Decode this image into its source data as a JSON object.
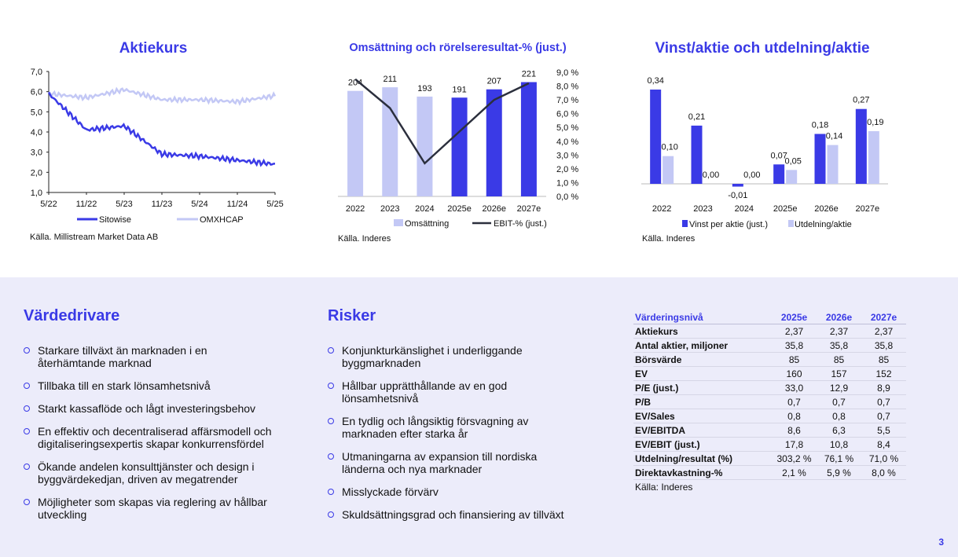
{
  "charts": {
    "stock": {
      "title": "Aktiekurs",
      "source": "Källa. Millistream Market Data AB",
      "y_ticks": [
        "7,0",
        "6,0",
        "5,0",
        "4,0",
        "3,0",
        "2,0",
        "1,0"
      ],
      "x_ticks": [
        "5/22",
        "11/22",
        "5/23",
        "11/23",
        "5/24",
        "11/24",
        "5/25"
      ],
      "legend": [
        "Sitowise",
        "OMXHCAP"
      ],
      "colors": {
        "sitowise": "#3a3ae6",
        "omxhcap": "#c3c8f5"
      }
    },
    "revenue": {
      "title": "Omsättning och rörelseresultat-% (just.)",
      "source": "Källa. Inderes",
      "y2_ticks": [
        "9,0 %",
        "8,0 %",
        "7,0 %",
        "6,0 %",
        "5,0 %",
        "4,0 %",
        "3,0 %",
        "2,0 %",
        "1,0 %",
        "0,0 %"
      ],
      "legend": [
        "Omsättning",
        "EBIT-% (just.)"
      ],
      "colors": {
        "bar_hist": "#c3c8f5",
        "bar_fc": "#3a3ae6",
        "line": "#2b2f3d"
      }
    },
    "eps": {
      "title": "Vinst/aktie och utdelning/aktie",
      "source": "Källa. Inderes",
      "legend": [
        "Vinst per aktie (just.)",
        "Utdelning/aktie"
      ],
      "colors": {
        "eps": "#3a3ae6",
        "div": "#c3c8f5"
      }
    }
  },
  "chart_data": [
    {
      "type": "line",
      "title": "Aktiekurs",
      "x": [
        "5/22",
        "11/22",
        "5/23",
        "11/23",
        "5/24",
        "11/24",
        "5/25"
      ],
      "ylim": [
        1.0,
        7.0
      ],
      "series": [
        {
          "name": "Sitowise",
          "values": [
            5.9,
            4.1,
            4.3,
            2.9,
            2.8,
            2.6,
            2.4
          ]
        },
        {
          "name": "OMXHCAP",
          "values": [
            5.9,
            5.7,
            6.1,
            5.6,
            5.6,
            5.5,
            5.8
          ]
        }
      ]
    },
    {
      "type": "bar",
      "title": "Omsättning och rörelseresultat-% (just.)",
      "categories": [
        "2022",
        "2023",
        "2024",
        "2025e",
        "2026e",
        "2027e"
      ],
      "series": [
        {
          "name": "Omsättning",
          "values": [
            204,
            211,
            193,
            191,
            207,
            221
          ]
        },
        {
          "name": "EBIT-% (just.)",
          "values": [
            8.5,
            6.4,
            2.4,
            4.7,
            7.0,
            8.2
          ]
        }
      ],
      "y2lim": [
        0,
        9
      ]
    },
    {
      "type": "bar",
      "title": "Vinst/aktie och utdelning/aktie",
      "categories": [
        "2022",
        "2023",
        "2024",
        "2025e",
        "2026e",
        "2027e"
      ],
      "series": [
        {
          "name": "Vinst per aktie (just.)",
          "values": [
            0.34,
            0.21,
            -0.01,
            0.07,
            0.18,
            0.27
          ],
          "labels": [
            "0,34",
            "0,21",
            "-0,01",
            "0,07",
            "0,18",
            "0,27"
          ]
        },
        {
          "name": "Utdelning/aktie",
          "values": [
            0.1,
            0.0,
            0.0,
            0.05,
            0.14,
            0.19
          ],
          "labels": [
            "0,10",
            "0,00",
            "0,00",
            "0,05",
            "0,14",
            "0,19"
          ]
        }
      ]
    }
  ],
  "drivers": {
    "title": "Värdedrivare",
    "items": [
      [
        "Starkare tillväxt än marknaden i en",
        "återhämtande marknad"
      ],
      [
        "Tillbaka till en stark lönsamhetsnivå"
      ],
      [
        "Starkt kassaflöde och lågt investeringsbehov"
      ],
      [
        "En effektiv och decentraliserad affärsmodell och",
        "digitaliseringsexpertis skapar konkurrensfördel"
      ],
      [
        "Ökande andelen konsulttjänster och design i",
        "byggvärdekedjan, driven av megatrender"
      ],
      [
        "Möjligheter som skapas via reglering av hållbar",
        "utveckling"
      ]
    ]
  },
  "risks": {
    "title": "Risker",
    "items": [
      [
        "Konjunkturkänslighet i underliggande",
        "byggmarknaden"
      ],
      [
        "Hållbar upprätthållande av en god",
        "lönsamhetsnivå"
      ],
      [
        "En tydlig och långsiktig försvagning av",
        "marknaden efter starka år"
      ],
      [
        "Utmaningarna av expansion till nordiska",
        "länderna och nya marknader"
      ],
      [
        "Misslyckade förvärv"
      ],
      [
        "Skuldsättningsgrad och finansiering av tillväxt"
      ]
    ]
  },
  "valuation": {
    "header": [
      "Värderingsnivå",
      "2025e",
      "2026e",
      "2027e"
    ],
    "rows": [
      [
        "Aktiekurs",
        "2,37",
        "2,37",
        "2,37"
      ],
      [
        "Antal aktier, miljoner",
        "35,8",
        "35,8",
        "35,8"
      ],
      [
        "Börsvärde",
        "85",
        "85",
        "85"
      ],
      [
        "EV",
        "160",
        "157",
        "152"
      ],
      [
        "P/E (just.)",
        "33,0",
        "12,9",
        "8,9"
      ],
      [
        "P/B",
        "0,7",
        "0,7",
        "0,7"
      ],
      [
        "EV/Sales",
        "0,8",
        "0,8",
        "0,7"
      ],
      [
        "EV/EBITDA",
        "8,6",
        "6,3",
        "5,5"
      ],
      [
        "EV/EBIT (just.)",
        "17,8",
        "10,8",
        "8,4"
      ],
      [
        "Utdelning/resultat (%)",
        "303,2 %",
        "76,1 %",
        "71,0 %"
      ],
      [
        "Direktavkastning-%",
        "2,1 %",
        "5,9 %",
        "8,0 %"
      ]
    ],
    "source": "Källa: Inderes"
  },
  "page_number": "3"
}
